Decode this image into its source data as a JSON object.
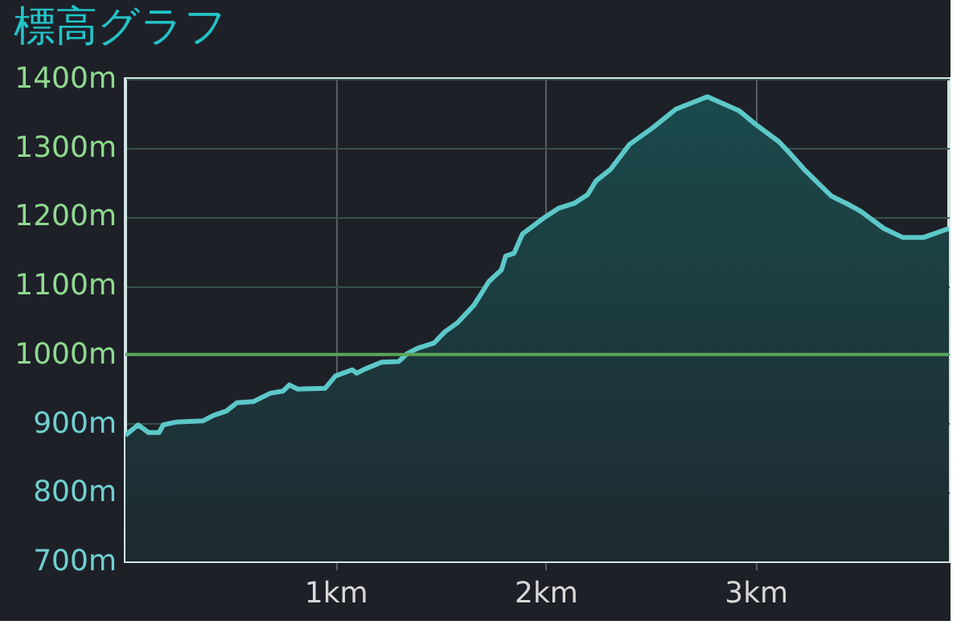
{
  "chart_data": {
    "type": "area",
    "title": "標高グラフ",
    "x": [
      0,
      0.06,
      0.11,
      0.16,
      0.18,
      0.24,
      0.37,
      0.42,
      0.48,
      0.53,
      0.61,
      0.69,
      0.75,
      0.78,
      0.82,
      0.95,
      1.0,
      1.08,
      1.1,
      1.14,
      1.22,
      1.3,
      1.34,
      1.39,
      1.47,
      1.52,
      1.58,
      1.66,
      1.73,
      1.79,
      1.81,
      1.85,
      1.89,
      1.96,
      2.0,
      2.06,
      2.14,
      2.2,
      2.24,
      2.31,
      2.4,
      2.51,
      2.62,
      2.77,
      2.92,
      3.0,
      3.11,
      3.16,
      3.23,
      3.3,
      3.36,
      3.44,
      3.5,
      3.61,
      3.7,
      3.8,
      3.92
    ],
    "series": [
      {
        "color": "#5cc8c8",
        "values": [
          883,
          898,
          887,
          887,
          898,
          902,
          904,
          912,
          918,
          930,
          932,
          944,
          947,
          956,
          950,
          951,
          969,
          978,
          973,
          979,
          989,
          990,
          1001,
          1009,
          1017,
          1033,
          1046,
          1072,
          1106,
          1123,
          1143,
          1147,
          1175,
          1191,
          1200,
          1212,
          1220,
          1232,
          1252,
          1269,
          1305,
          1329,
          1356,
          1374,
          1354,
          1334,
          1309,
          1293,
          1269,
          1248,
          1230,
          1218,
          1208,
          1183,
          1170,
          1170,
          1183
        ]
      }
    ],
    "xlim": [
      0,
      3.92
    ],
    "xticks": [
      {
        "value": 1,
        "label": "1km"
      },
      {
        "value": 2,
        "label": "2km"
      },
      {
        "value": 3,
        "label": "3km"
      }
    ],
    "ylim": [
      700,
      1400
    ],
    "yticks": [
      {
        "value": 700,
        "label": "700m"
      },
      {
        "value": 800,
        "label": "800m"
      },
      {
        "value": 900,
        "label": "900m"
      },
      {
        "value": 1000,
        "label": "1000m"
      },
      {
        "value": 1100,
        "label": "1100m"
      },
      {
        "value": 1200,
        "label": "1200m"
      },
      {
        "value": 1300,
        "label": "1300m"
      },
      {
        "value": 1400,
        "label": "1400m"
      }
    ],
    "ref_lines": [
      {
        "axis": "y",
        "value": 1000,
        "color": "#5aa55a"
      }
    ],
    "grid": true,
    "marker": "none",
    "line_style": "solid"
  }
}
